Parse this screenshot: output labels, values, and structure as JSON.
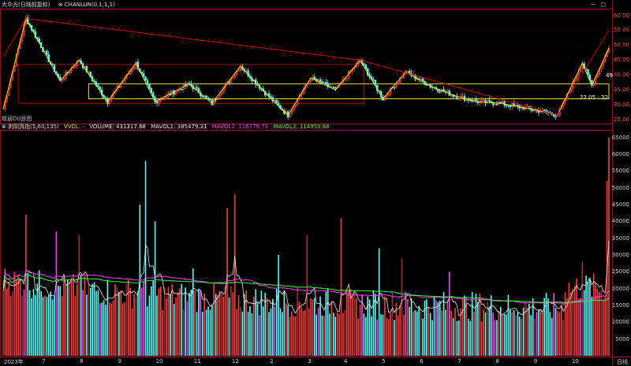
{
  "header": {
    "title": "大众光(日线前复权)",
    "indicator": "CHANLUN(0,1,1,1)",
    "win_buttons": [
      "−",
      "□"
    ]
  },
  "price_scale": [
    "60.00",
    "55.00",
    "50.00",
    "45.00",
    "40.00",
    "35.00",
    "30.00",
    "25.00"
  ],
  "price_notes": {
    "range_label": "22.05 - 32",
    "last_label": "49",
    "bottom_left": "叛弱DU是图"
  },
  "vol_header": {
    "name": "剥阴真指(5,60,135)",
    "vvol_label": "VVOL: -",
    "volume": "VOLUME: 431317.88",
    "mavol1": "MAVOL1: 385479.31",
    "mavol2": "MAVOL2: 116779.73",
    "mavol3": "MAVOL3: 114950.68"
  },
  "vol_scale": [
    "65000",
    "60000",
    "55000",
    "50000",
    "45000",
    "40000",
    "35000",
    "30000",
    "25000",
    "20000",
    "15000",
    "10000",
    "5000"
  ],
  "dates": [
    "2023年",
    "7",
    "8",
    "9",
    "10",
    "11",
    "12",
    "2",
    "3",
    "4",
    "5",
    "6",
    "7",
    "8",
    "9",
    "10"
  ],
  "period_label": "日线",
  "colors": {
    "up": "#ff3c3c",
    "down": "#54ffff",
    "border": "#c00000",
    "yellow": "#e6e600",
    "magenta": "#ff3cff",
    "green": "#33ff33",
    "white": "#e8e8e8"
  },
  "chart_data": [
    {
      "type": "candlestick",
      "title": "大众光(日线前复权)",
      "ylim": [
        25,
        62
      ],
      "pivots": [
        {
          "i": 0,
          "p": 28.5
        },
        {
          "i": 12,
          "p": 59
        },
        {
          "i": 30,
          "p": 38
        },
        {
          "i": 40,
          "p": 45
        },
        {
          "i": 55,
          "p": 31
        },
        {
          "i": 70,
          "p": 44
        },
        {
          "i": 80,
          "p": 31
        },
        {
          "i": 98,
          "p": 37
        },
        {
          "i": 110,
          "p": 30.5
        },
        {
          "i": 125,
          "p": 43
        },
        {
          "i": 138,
          "p": 34
        },
        {
          "i": 150,
          "p": 26.5
        },
        {
          "i": 162,
          "p": 39
        },
        {
          "i": 175,
          "p": 35
        },
        {
          "i": 188,
          "p": 45
        },
        {
          "i": 200,
          "p": 32
        },
        {
          "i": 212,
          "p": 41
        },
        {
          "i": 226,
          "p": 36
        },
        {
          "i": 238,
          "p": 33
        },
        {
          "i": 250,
          "p": 31
        },
        {
          "i": 262,
          "p": 30.5
        },
        {
          "i": 274,
          "p": 29
        },
        {
          "i": 286,
          "p": 27.5
        },
        {
          "i": 292,
          "p": 26.5
        },
        {
          "i": 305,
          "p": 44
        },
        {
          "i": 310,
          "p": 36.5
        },
        {
          "i": 319,
          "p": 49
        }
      ],
      "zones": [
        {
          "label": "zone1",
          "low": 30.5,
          "high": 43.5
        },
        {
          "label": "zone2",
          "low": 32,
          "high": 37
        }
      ]
    },
    {
      "type": "bar",
      "ylim": [
        0,
        67000
      ],
      "series": [
        {
          "name": "MAVOL1"
        },
        {
          "name": "MAVOL2"
        },
        {
          "name": "MAVOL3"
        }
      ],
      "spikes": [
        {
          "i": 12,
          "v": 42000
        },
        {
          "i": 28,
          "v": 37000
        },
        {
          "i": 40,
          "v": 36000
        },
        {
          "i": 72,
          "v": 45000
        },
        {
          "i": 75,
          "v": 58000
        },
        {
          "i": 80,
          "v": 40000
        },
        {
          "i": 100,
          "v": 26000
        },
        {
          "i": 118,
          "v": 44000
        },
        {
          "i": 122,
          "v": 48000
        },
        {
          "i": 145,
          "v": 30000
        },
        {
          "i": 160,
          "v": 36000
        },
        {
          "i": 178,
          "v": 41000
        },
        {
          "i": 198,
          "v": 32000
        },
        {
          "i": 210,
          "v": 29000
        },
        {
          "i": 235,
          "v": 25000
        },
        {
          "i": 250,
          "v": 16000
        },
        {
          "i": 268,
          "v": 13000
        },
        {
          "i": 300,
          "v": 20000
        },
        {
          "i": 305,
          "v": 28000
        },
        {
          "i": 318,
          "v": 52000
        },
        {
          "i": 319,
          "v": 65000
        }
      ],
      "last_volume": 431317.88
    }
  ]
}
